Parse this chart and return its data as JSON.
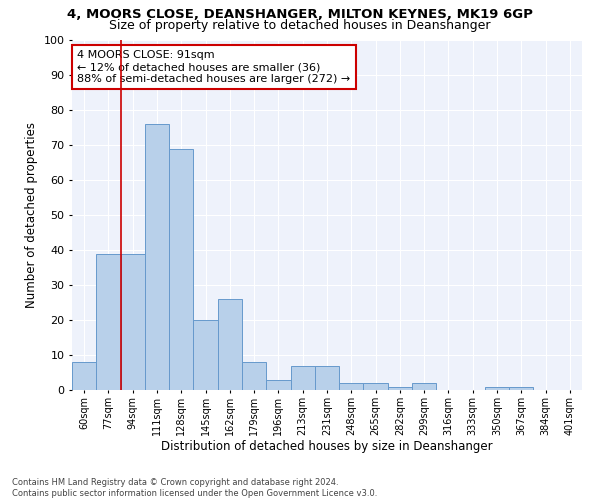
{
  "title1": "4, MOORS CLOSE, DEANSHANGER, MILTON KEYNES, MK19 6GP",
  "title2": "Size of property relative to detached houses in Deanshanger",
  "xlabel": "Distribution of detached houses by size in Deanshanger",
  "ylabel": "Number of detached properties",
  "categories": [
    "60sqm",
    "77sqm",
    "94sqm",
    "111sqm",
    "128sqm",
    "145sqm",
    "162sqm",
    "179sqm",
    "196sqm",
    "213sqm",
    "231sqm",
    "248sqm",
    "265sqm",
    "282sqm",
    "299sqm",
    "316sqm",
    "333sqm",
    "350sqm",
    "367sqm",
    "384sqm",
    "401sqm"
  ],
  "values": [
    8,
    39,
    39,
    76,
    69,
    20,
    26,
    8,
    3,
    7,
    7,
    2,
    2,
    1,
    2,
    0,
    0,
    1,
    1,
    0,
    0
  ],
  "bar_color": "#b8d0ea",
  "bar_edge_color": "#6699cc",
  "vline_color": "#cc0000",
  "annotation_text": "4 MOORS CLOSE: 91sqm\n← 12% of detached houses are smaller (36)\n88% of semi-detached houses are larger (272) →",
  "annotation_box_color": "#cc0000",
  "ylim": [
    0,
    100
  ],
  "yticks": [
    0,
    10,
    20,
    30,
    40,
    50,
    60,
    70,
    80,
    90,
    100
  ],
  "footer1": "Contains HM Land Registry data © Crown copyright and database right 2024.",
  "footer2": "Contains public sector information licensed under the Open Government Licence v3.0.",
  "bg_color": "#eef2fb",
  "title1_fontsize": 9.5,
  "title2_fontsize": 9
}
